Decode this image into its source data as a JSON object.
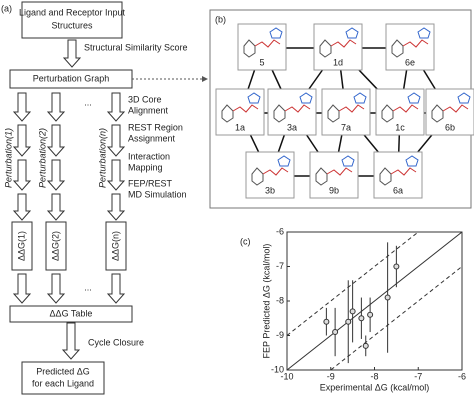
{
  "panel_a": {
    "label": "(a)",
    "input_box": [
      "Ligand and Receptor Input",
      "Structures"
    ],
    "similarity_label": "Structural Similarity Score",
    "graph_box": "Perturbation Graph",
    "perturbations": [
      "Perturbation(1)",
      "Perturbation(2)",
      "Perturbation(n)"
    ],
    "ellipsis": "...",
    "steps": [
      [
        "3D Core",
        "Alignment"
      ],
      [
        "REST Region",
        "Assignment"
      ],
      [
        "Interaction",
        "Mapping"
      ],
      [
        "FEP/REST",
        "MD Simulation"
      ]
    ],
    "ddg_boxes": [
      "ΔΔG(1)",
      "ΔΔG(2)",
      "ΔΔG(n)"
    ],
    "table_box": "ΔΔG Table",
    "closure_label": "Cycle Closure",
    "result_box": [
      "Predicted ΔG",
      "for each Ligand"
    ]
  },
  "panel_b": {
    "label": "(b)",
    "nodes": [
      "5",
      "1d",
      "6e",
      "1a",
      "3a",
      "7a",
      "1c",
      "6b",
      "3b",
      "9b",
      "6a"
    ]
  },
  "panel_c": {
    "label": "(c)",
    "type": "scatter",
    "x_label": "Experimental ΔG (kcal/mol)",
    "y_label": "FEP Predicted ΔG (kcal/mol)",
    "xlim": [
      -10,
      -6
    ],
    "ylim": [
      -10,
      -6
    ],
    "xticks": [
      -10,
      -9,
      -8,
      -7,
      -6
    ],
    "yticks": [
      -10,
      -9,
      -8,
      -7,
      -6
    ],
    "x": [
      -9.1,
      -8.9,
      -8.6,
      -8.5,
      -8.3,
      -8.2,
      -8.1,
      -7.7,
      -7.5
    ],
    "y": [
      -8.6,
      -8.9,
      -8.6,
      -8.3,
      -8.5,
      -9.3,
      -8.4,
      -7.9,
      -7.0
    ],
    "errors": [
      0.4,
      0.7,
      1.2,
      0.9,
      0.6,
      0.3,
      0.5,
      1.6,
      0.6
    ]
  }
}
